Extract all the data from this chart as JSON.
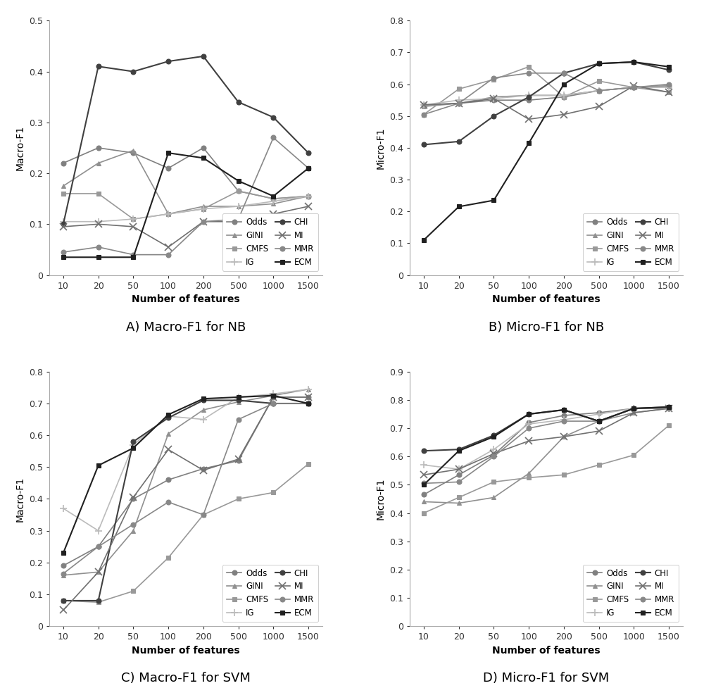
{
  "x_values": [
    10,
    20,
    50,
    100,
    200,
    500,
    1000,
    1500
  ],
  "x_labels": [
    "10",
    "20",
    "50",
    "100",
    "200",
    "500",
    "1000",
    "1500"
  ],
  "A_title": "A) Macro-F1 for NB",
  "A_ylabel": "Macro-F1",
  "A_ylim": [
    0,
    0.5
  ],
  "A_yticks": [
    0,
    0.1,
    0.2,
    0.3,
    0.4,
    0.5
  ],
  "A_series": {
    "Odds": [
      0.22,
      0.25,
      0.24,
      0.21,
      0.25,
      0.165,
      0.15,
      0.155
    ],
    "GINI": [
      0.175,
      0.22,
      0.245,
      0.12,
      0.135,
      0.135,
      0.14,
      0.155
    ],
    "CMFS": [
      0.16,
      0.16,
      0.11,
      0.12,
      0.13,
      0.165,
      0.15,
      0.155
    ],
    "IG": [
      0.105,
      0.105,
      0.11,
      0.12,
      0.13,
      0.135,
      0.145,
      0.155
    ],
    "CHI": [
      0.1,
      0.41,
      0.4,
      0.42,
      0.43,
      0.34,
      0.31,
      0.24
    ],
    "MI": [
      0.095,
      0.1,
      0.095,
      0.055,
      0.105,
      0.105,
      0.12,
      0.135
    ],
    "MMR": [
      0.045,
      0.055,
      0.04,
      0.04,
      0.105,
      0.11,
      0.27,
      0.21
    ],
    "ECM": [
      0.035,
      0.035,
      0.035,
      0.24,
      0.23,
      0.185,
      0.155,
      0.21
    ]
  },
  "B_title": "B) Micro-F1 for NB",
  "B_ylabel": "Micro-F1",
  "B_ylim": [
    0,
    0.8
  ],
  "B_yticks": [
    0,
    0.1,
    0.2,
    0.3,
    0.4,
    0.5,
    0.6,
    0.7,
    0.8
  ],
  "B_series": {
    "Odds": [
      0.535,
      0.54,
      0.55,
      0.55,
      0.56,
      0.58,
      0.59,
      0.595
    ],
    "GINI": [
      0.53,
      0.54,
      0.56,
      0.565,
      0.565,
      0.58,
      0.59,
      0.595
    ],
    "CMFS": [
      0.505,
      0.585,
      0.615,
      0.655,
      0.56,
      0.61,
      0.59,
      0.575
    ],
    "IG": [
      0.535,
      0.55,
      0.555,
      0.565,
      0.565,
      0.58,
      0.59,
      0.59
    ],
    "CHI": [
      0.41,
      0.42,
      0.5,
      0.56,
      0.635,
      0.665,
      0.67,
      0.645
    ],
    "MI": [
      0.535,
      0.54,
      0.555,
      0.49,
      0.505,
      0.53,
      0.595,
      0.575
    ],
    "MMR": [
      0.505,
      0.54,
      0.62,
      0.635,
      0.635,
      0.58,
      0.59,
      0.6
    ],
    "ECM": [
      0.11,
      0.215,
      0.235,
      0.415,
      0.6,
      0.665,
      0.67,
      0.655
    ]
  },
  "C_title": "C) Macro-F1 for SVM",
  "C_ylabel": "Macro-F1",
  "C_ylim": [
    0,
    0.8
  ],
  "C_yticks": [
    0,
    0.1,
    0.2,
    0.3,
    0.4,
    0.5,
    0.6,
    0.7,
    0.8
  ],
  "C_series": {
    "Odds": [
      0.19,
      0.25,
      0.4,
      0.46,
      0.495,
      0.52,
      0.72,
      0.72
    ],
    "GINI": [
      0.16,
      0.17,
      0.3,
      0.605,
      0.68,
      0.705,
      0.725,
      0.745
    ],
    "CMFS": [
      0.08,
      0.075,
      0.11,
      0.215,
      0.35,
      0.4,
      0.42,
      0.51
    ],
    "IG": [
      0.37,
      0.3,
      0.57,
      0.66,
      0.65,
      0.72,
      0.73,
      0.745
    ],
    "CHI": [
      0.08,
      0.08,
      0.58,
      0.655,
      0.71,
      0.71,
      0.7,
      0.7
    ],
    "MI": [
      0.05,
      0.17,
      0.405,
      0.555,
      0.49,
      0.525,
      0.72,
      0.72
    ],
    "MMR": [
      0.165,
      0.25,
      0.32,
      0.39,
      0.35,
      0.65,
      0.7,
      0.7
    ],
    "ECM": [
      0.23,
      0.505,
      0.56,
      0.665,
      0.715,
      0.72,
      0.725,
      0.7
    ]
  },
  "D_title": "D) Micro-F1 for SVM",
  "D_ylabel": "Micro-F1",
  "D_ylim": [
    0,
    0.9
  ],
  "D_yticks": [
    0,
    0.1,
    0.2,
    0.3,
    0.4,
    0.5,
    0.6,
    0.7,
    0.8,
    0.9
  ],
  "D_series": {
    "Odds": [
      0.465,
      0.535,
      0.605,
      0.72,
      0.745,
      0.755,
      0.77,
      0.77
    ],
    "GINI": [
      0.44,
      0.435,
      0.455,
      0.54,
      0.67,
      0.725,
      0.755,
      0.77
    ],
    "CMFS": [
      0.4,
      0.455,
      0.51,
      0.525,
      0.535,
      0.57,
      0.605,
      0.71
    ],
    "IG": [
      0.57,
      0.555,
      0.625,
      0.715,
      0.73,
      0.75,
      0.77,
      0.77
    ],
    "CHI": [
      0.62,
      0.625,
      0.675,
      0.75,
      0.765,
      0.725,
      0.77,
      0.775
    ],
    "MI": [
      0.535,
      0.555,
      0.61,
      0.655,
      0.67,
      0.69,
      0.755,
      0.77
    ],
    "MMR": [
      0.505,
      0.51,
      0.6,
      0.7,
      0.725,
      0.725,
      0.77,
      0.77
    ],
    "ECM": [
      0.5,
      0.62,
      0.67,
      0.75,
      0.765,
      0.725,
      0.77,
      0.775
    ]
  },
  "series_colors": {
    "Odds": "#808080",
    "GINI": "#909090",
    "CMFS": "#999999",
    "IG": "#bbbbbb",
    "CHI": "#404040",
    "MI": "#707070",
    "MMR": "#888888",
    "ECM": "#202020"
  },
  "series_markers": {
    "Odds": "o",
    "GINI": "^",
    "CMFS": "s",
    "IG": "+",
    "CHI": "o",
    "MI": "x",
    "MMR": "o",
    "ECM": "s"
  },
  "series_linewidths": {
    "Odds": 1.2,
    "GINI": 1.2,
    "CMFS": 1.2,
    "IG": 1.2,
    "CHI": 1.5,
    "MI": 1.2,
    "MMR": 1.2,
    "ECM": 1.5
  },
  "series_order": [
    "Odds",
    "GINI",
    "CMFS",
    "IG",
    "CHI",
    "MI",
    "MMR",
    "ECM"
  ],
  "xlabel": "Number of features",
  "background_color": "#ffffff"
}
